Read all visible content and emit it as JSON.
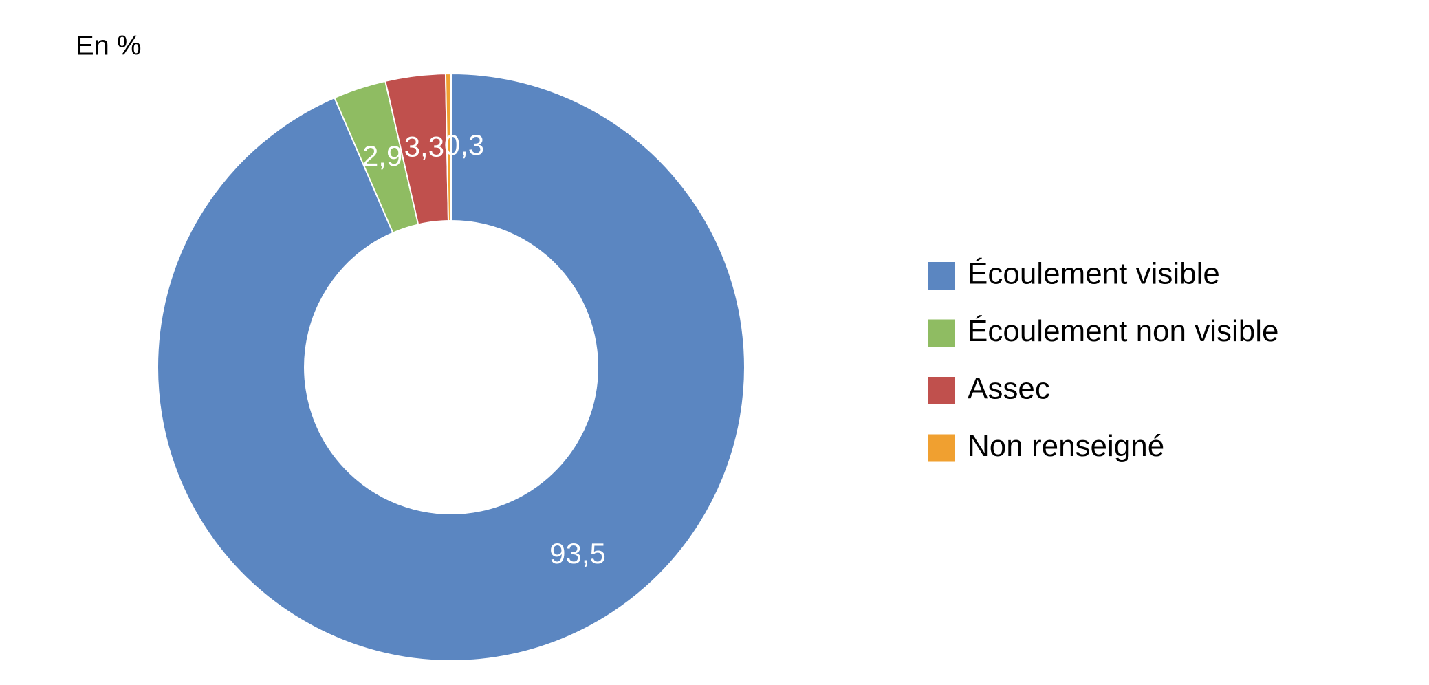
{
  "chart_data": {
    "type": "donut",
    "title": "En %",
    "categories": [
      "Écoulement visible",
      "Écoulement non visible",
      "Assec",
      "Non renseigné"
    ],
    "values": [
      93.5,
      2.9,
      3.3,
      0.3
    ],
    "value_labels": [
      "93,5",
      "2,9",
      "3,3",
      "0,3"
    ],
    "colors": [
      "#5b86c1",
      "#8fbc62",
      "#c0504d",
      "#f0a030"
    ],
    "legend": "right"
  }
}
